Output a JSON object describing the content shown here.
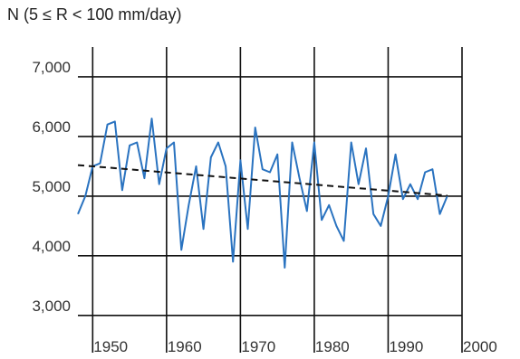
{
  "chart_data": {
    "type": "line",
    "title": "N (5 ≤ R < 100 mm/day)",
    "xlabel": "",
    "ylabel": "",
    "xlim": [
      1948,
      2000
    ],
    "ylim": [
      2800,
      7500
    ],
    "x_ticks": [
      1950,
      1960,
      1970,
      1980,
      1990,
      2000
    ],
    "x_tick_labels": [
      "1950",
      "1960",
      "1970",
      "1980",
      "1990",
      "2000"
    ],
    "y_ticks": [
      3000,
      4000,
      5000,
      6000,
      7000
    ],
    "y_tick_labels": [
      "3,000",
      "4,000",
      "5,000",
      "6,000",
      "7,000"
    ],
    "grid": true,
    "legend": "none",
    "colors": {
      "series": "#2a73c0",
      "trend": "#111111",
      "grid": "#111111"
    },
    "series": [
      {
        "style": "solid",
        "x": [
          1948,
          1949,
          1950,
          1951,
          1952,
          1953,
          1954,
          1955,
          1956,
          1957,
          1958,
          1959,
          1960,
          1961,
          1962,
          1963,
          1964,
          1965,
          1966,
          1967,
          1968,
          1969,
          1970,
          1971,
          1972,
          1973,
          1974,
          1975,
          1976,
          1977,
          1978,
          1979,
          1980,
          1981,
          1982,
          1983,
          1984,
          1985,
          1986,
          1987,
          1988,
          1989,
          1990,
          1991,
          1992,
          1993,
          1994,
          1995,
          1996,
          1997,
          1998
        ],
        "values": [
          4700,
          5000,
          5500,
          5550,
          6200,
          6250,
          5100,
          5850,
          5900,
          5300,
          6300,
          5200,
          5800,
          5900,
          4100,
          4850,
          5500,
          4450,
          5650,
          5900,
          5500,
          3900,
          5600,
          4450,
          6150,
          5450,
          5400,
          5700,
          3800,
          5900,
          5300,
          4750,
          5900,
          4600,
          4850,
          4500,
          4250,
          5900,
          5200,
          5800,
          4700,
          4500,
          5000,
          5700,
          4950,
          5200,
          4950,
          5400,
          5450,
          4700,
          5000
        ]
      },
      {
        "style": "dashed",
        "x": [
          1948,
          1998
        ],
        "values": [
          5520,
          5010
        ]
      }
    ]
  }
}
